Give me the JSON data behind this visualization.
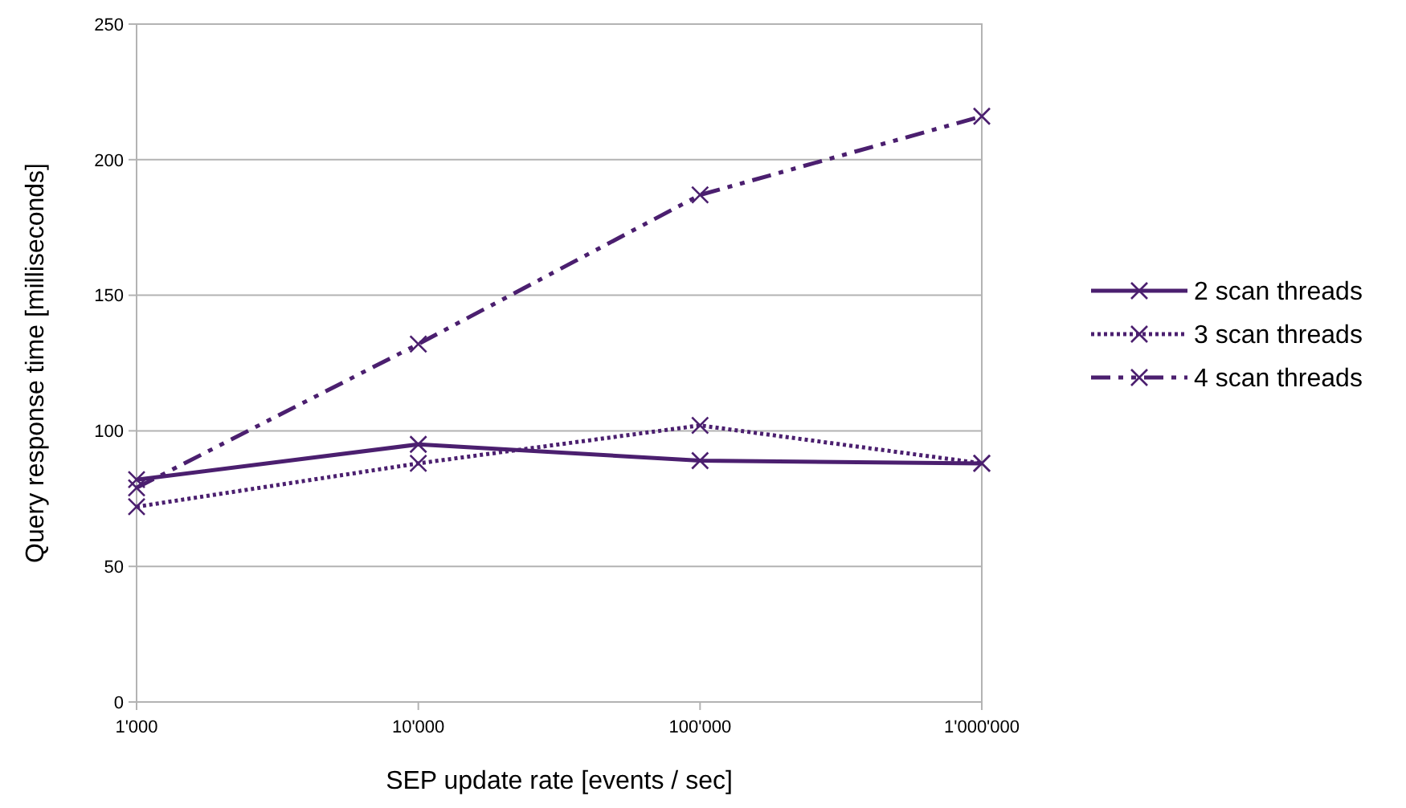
{
  "chart_data": {
    "type": "line",
    "xlabel": "SEP update rate [events / sec]",
    "ylabel": "Query response time [milliseconds]",
    "categories": [
      "1'000",
      "10'000",
      "100'000",
      "1'000'000"
    ],
    "series": [
      {
        "name": "2 scan threads",
        "color": "#4b1f6f",
        "values": [
          82,
          95,
          89,
          88
        ],
        "line_style": "solid"
      },
      {
        "name": "3 scan threads",
        "color": "#4b1f6f",
        "values": [
          72,
          88,
          102,
          88
        ],
        "line_style": "dotted"
      },
      {
        "name": "4 scan threads",
        "color": "#4b1f6f",
        "values": [
          79,
          132,
          187,
          216
        ],
        "line_style": "dashed"
      }
    ],
    "ylim": [
      0,
      250
    ],
    "yticks": [
      0,
      50,
      100,
      150,
      200,
      250
    ],
    "grid": "y",
    "legend": "right",
    "marker": "cross"
  }
}
